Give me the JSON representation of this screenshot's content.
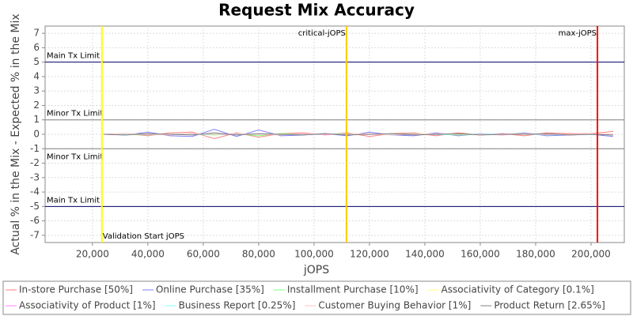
{
  "chart_data": {
    "type": "line",
    "title": "Request Mix Accuracy",
    "x_label": "jOPS",
    "y_label": "Actual % in the Mix - Expected % in the Mix",
    "xlim": [
      2900,
      212000
    ],
    "ylim": [
      -7.5,
      7.5
    ],
    "xticks": [
      {
        "value": 20000,
        "label": "20,000"
      },
      {
        "value": 40000,
        "label": "40,000"
      },
      {
        "value": 60000,
        "label": "60,000"
      },
      {
        "value": 80000,
        "label": "80,000"
      },
      {
        "value": 100000,
        "label": "100,000"
      },
      {
        "value": 120000,
        "label": "120,000"
      },
      {
        "value": 140000,
        "label": "140,000"
      },
      {
        "value": 160000,
        "label": "160,000"
      },
      {
        "value": 180000,
        "label": "180,000"
      },
      {
        "value": 200000,
        "label": "200,000"
      }
    ],
    "yticks": [
      -7,
      -6,
      -5,
      -4,
      -3,
      -2,
      -1,
      0,
      1,
      2,
      3,
      4,
      5,
      6,
      7
    ],
    "grid": true,
    "limits": [
      {
        "label": "Main Tx Limit",
        "value": 5,
        "color": "#000066"
      },
      {
        "label": "Minor Tx Limit",
        "value": 1,
        "color": "#808080"
      },
      {
        "label": "Minor Tx Limit",
        "value": -1,
        "color": "#808080"
      },
      {
        "label": "Main Tx Limit",
        "value": -5,
        "color": "#000066"
      }
    ],
    "markers": [
      {
        "label": "Validation Start jOPS",
        "value": 23400,
        "color": "#ffff00"
      },
      {
        "label": "critical-jOPS",
        "value": 111700,
        "color": "#ffc800"
      },
      {
        "label": "max-jOPS",
        "value": 202300,
        "color": "#ff0000"
      }
    ],
    "x": [
      24000,
      32000,
      40000,
      48000,
      56000,
      64000,
      72000,
      80000,
      88000,
      96000,
      104000,
      112000,
      120000,
      128000,
      136000,
      144000,
      152000,
      160000,
      168000,
      176000,
      184000,
      192000,
      200000,
      208000
    ],
    "series": [
      {
        "name": "In-store Purchase [50%]",
        "color": "#ff8080",
        "values": [
          0,
          0.05,
          -0.1,
          0.1,
          0.15,
          -0.3,
          0.1,
          -0.2,
          0.05,
          0.1,
          -0.05,
          0.1,
          -0.15,
          0.05,
          0.1,
          -0.1,
          0.1,
          -0.05,
          0.05,
          -0.1,
          0.1,
          0.05,
          0.05,
          0.2
        ]
      },
      {
        "name": "Online Purchase [35%]",
        "color": "#8080ff",
        "values": [
          0,
          -0.05,
          0.15,
          -0.1,
          -0.15,
          0.35,
          -0.15,
          0.3,
          -0.1,
          -0.05,
          0.05,
          -0.1,
          0.15,
          -0.05,
          -0.1,
          0.1,
          -0.1,
          0.05,
          -0.05,
          0.1,
          -0.1,
          -0.05,
          0,
          -0.15
        ]
      },
      {
        "name": "Installment Purchase [10%]",
        "color": "#80ff80",
        "values": [
          0,
          0,
          -0.05,
          0,
          0.05,
          -0.05,
          0.05,
          -0.1,
          0.05,
          0,
          0,
          0.05,
          0,
          0,
          0.05,
          0,
          -0.05,
          0,
          0,
          0.05,
          -0.05,
          0,
          0,
          -0.05
        ]
      },
      {
        "name": "Associativity of Category [0.1%]",
        "color": "#ffff80",
        "values": [
          0,
          0,
          0,
          0,
          0,
          0,
          0,
          0,
          0,
          0,
          0,
          0,
          0,
          0,
          0,
          0,
          0,
          0,
          0,
          0,
          0,
          0,
          0,
          0
        ]
      },
      {
        "name": "Associativity of Product [1%]",
        "color": "#ff80ff",
        "values": [
          0,
          0.02,
          -0.02,
          0,
          0.02,
          0,
          -0.02,
          0.02,
          0,
          0,
          -0.02,
          0.02,
          0,
          0,
          0.02,
          -0.02,
          0,
          0,
          0.02,
          0,
          -0.02,
          0,
          0.02,
          0
        ]
      },
      {
        "name": "Business Report [0.25%]",
        "color": "#80ffff",
        "values": [
          0,
          0,
          0.02,
          0,
          -0.02,
          0,
          0.02,
          0,
          0,
          -0.02,
          0,
          0,
          0.02,
          0,
          0,
          -0.02,
          0,
          0.02,
          0,
          0,
          0,
          -0.02,
          0,
          0
        ]
      },
      {
        "name": "Customer Buying Behavior [1%]",
        "color": "#ffc0c0",
        "values": [
          0,
          0.05,
          0,
          -0.05,
          0.05,
          0,
          0.05,
          0,
          -0.05,
          0.05,
          0,
          0,
          0.05,
          -0.05,
          0,
          0.05,
          0,
          0,
          -0.05,
          0.05,
          0,
          0,
          0.05,
          0
        ]
      },
      {
        "name": "Product Return [2.65%]",
        "color": "#808080",
        "values": [
          0,
          -0.05,
          0.05,
          0,
          -0.05,
          0.1,
          -0.05,
          0.05,
          0,
          -0.05,
          0.05,
          -0.05,
          0,
          0.05,
          -0.05,
          0,
          0.05,
          -0.05,
          0,
          0,
          0.05,
          -0.05,
          0,
          -0.05
        ]
      }
    ]
  }
}
